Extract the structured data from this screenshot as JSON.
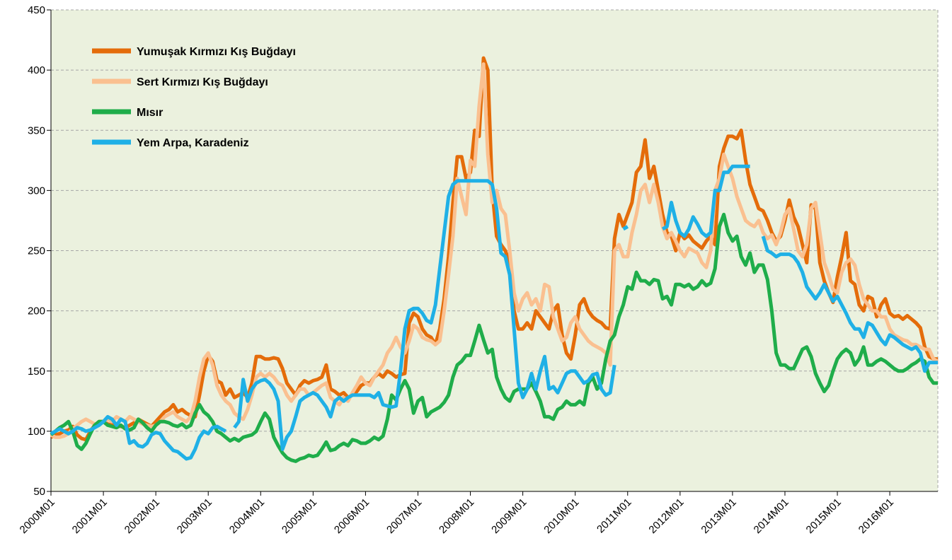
{
  "chart_data": {
    "type": "line",
    "categories": [
      "2000M01",
      null,
      null,
      null,
      null,
      null,
      null,
      null,
      null,
      null,
      null,
      null,
      "2001M01",
      null,
      null,
      null,
      null,
      null,
      null,
      null,
      null,
      null,
      null,
      null,
      "2002M01",
      null,
      null,
      null,
      null,
      null,
      null,
      null,
      null,
      null,
      null,
      null,
      "2003M01",
      null,
      null,
      null,
      null,
      null,
      null,
      null,
      null,
      null,
      null,
      null,
      "2004M01",
      null,
      null,
      null,
      null,
      null,
      null,
      null,
      null,
      null,
      null,
      null,
      "2005M01",
      null,
      null,
      null,
      null,
      null,
      null,
      null,
      null,
      null,
      null,
      null,
      "2006M01",
      null,
      null,
      null,
      null,
      null,
      null,
      null,
      null,
      null,
      null,
      null,
      "2007M01",
      null,
      null,
      null,
      null,
      null,
      null,
      null,
      null,
      null,
      null,
      null,
      "2008M01",
      null,
      null,
      null,
      null,
      null,
      null,
      null,
      null,
      null,
      null,
      null,
      "2009M01",
      null,
      null,
      null,
      null,
      null,
      null,
      null,
      null,
      null,
      null,
      null,
      "2010M01",
      null,
      null,
      null,
      null,
      null,
      null,
      null,
      null,
      null,
      null,
      null,
      "2011M01",
      null,
      null,
      null,
      null,
      null,
      null,
      null,
      null,
      null,
      null,
      null,
      "2012M01",
      null,
      null,
      null,
      null,
      null,
      null,
      null,
      null,
      null,
      null,
      null,
      "2013M01",
      null,
      null,
      null,
      null,
      null,
      null,
      null,
      null,
      null,
      null,
      null,
      "2014M01",
      null,
      null,
      null,
      null,
      null,
      null,
      null,
      null,
      null,
      null,
      null,
      "2015M01",
      null,
      null,
      null,
      null,
      null,
      null,
      null,
      null,
      null,
      null,
      null,
      "2016M01",
      null,
      null,
      null,
      null,
      null,
      null,
      null,
      null,
      null,
      null,
      null
    ],
    "series": [
      {
        "name": "Yumuşak Kırmızı Kış Buğdayı",
        "color": "#e46c0a",
        "values": [
          95,
          97,
          98,
          100,
          101,
          104,
          97,
          94,
          93,
          100,
          105,
          108,
          108,
          106,
          105,
          106,
          104,
          103,
          105,
          107,
          110,
          108,
          106,
          104,
          108,
          112,
          116,
          118,
          122,
          116,
          118,
          115,
          113,
          112,
          130,
          150,
          163,
          158,
          142,
          140,
          130,
          135,
          128,
          130,
          132,
          128,
          140,
          162,
          162,
          160,
          160,
          161,
          160,
          152,
          140,
          135,
          130,
          138,
          142,
          140,
          142,
          143,
          145,
          155,
          135,
          133,
          130,
          132,
          128,
          130,
          133,
          138,
          140,
          140,
          145,
          148,
          145,
          150,
          148,
          145,
          147,
          148,
          190,
          198,
          195,
          185,
          180,
          178,
          172,
          185,
          210,
          245,
          290,
          328,
          328,
          310,
          315,
          350,
          345,
          410,
          400,
          300,
          262,
          255,
          250,
          240,
          200,
          185,
          185,
          190,
          185,
          200,
          195,
          190,
          185,
          200,
          205,
          180,
          165,
          160,
          180,
          205,
          210,
          200,
          195,
          192,
          190,
          186,
          185,
          260,
          280,
          270,
          280,
          290,
          315,
          320,
          342,
          310,
          320,
          300,
          280,
          265,
          262,
          250,
          265,
          260,
          263,
          258,
          255,
          252,
          258,
          262,
          255,
          320,
          335,
          345,
          345,
          343,
          350,
          325,
          305,
          295,
          285,
          283,
          275,
          265,
          258,
          262,
          275,
          292,
          278,
          270,
          255,
          240,
          288,
          285,
          240,
          225,
          215,
          207,
          228,
          245,
          265,
          225,
          222,
          205,
          200,
          212,
          210,
          195,
          205,
          210,
          198,
          195,
          196,
          193,
          196,
          193,
          190,
          186,
          170,
          162,
          160,
          160
        ]
      },
      {
        "name": "Sert Kırmızı Kış Buğdayı",
        "color": "#fac090",
        "values": [
          97,
          95,
          95,
          96,
          98,
          102,
          105,
          108,
          110,
          108,
          106,
          105,
          108,
          110,
          108,
          112,
          110,
          108,
          112,
          110,
          108,
          106,
          105,
          104,
          105,
          108,
          112,
          114,
          116,
          112,
          110,
          108,
          112,
          125,
          145,
          160,
          165,
          155,
          138,
          130,
          125,
          122,
          115,
          112,
          110,
          118,
          130,
          145,
          148,
          145,
          148,
          145,
          140,
          138,
          130,
          125,
          130,
          135,
          135,
          130,
          132,
          135,
          138,
          140,
          128,
          125,
          122,
          128,
          125,
          132,
          138,
          145,
          140,
          138,
          145,
          150,
          155,
          165,
          170,
          178,
          170,
          165,
          175,
          188,
          185,
          178,
          176,
          175,
          172,
          175,
          200,
          230,
          262,
          310,
          295,
          280,
          325,
          320,
          370,
          405,
          330,
          290,
          300,
          285,
          280,
          250,
          215,
          200,
          210,
          215,
          205,
          210,
          200,
          222,
          220,
          195,
          185,
          175,
          178,
          190,
          195,
          185,
          180,
          175,
          172,
          170,
          168,
          165,
          155,
          250,
          255,
          245,
          245,
          265,
          280,
          300,
          305,
          290,
          305,
          290,
          270,
          260,
          265,
          258,
          250,
          245,
          252,
          250,
          248,
          240,
          236,
          250,
          300,
          310,
          330,
          320,
          310,
          295,
          285,
          275,
          272,
          270,
          275,
          265,
          260,
          263,
          255,
          265,
          280,
          285,
          268,
          250,
          245,
          255,
          285,
          290,
          265,
          240,
          230,
          218,
          215,
          232,
          240,
          243,
          238,
          222,
          210,
          205,
          200,
          200,
          195,
          195,
          185,
          180,
          178,
          176,
          175,
          172,
          172,
          170,
          168,
          168,
          160,
          158
        ]
      },
      {
        "name": "Mısır",
        "color": "#1fad4a",
        "values": [
          97,
          100,
          103,
          105,
          108,
          100,
          88,
          85,
          90,
          98,
          105,
          108,
          108,
          105,
          104,
          103,
          105,
          102,
          101,
          103,
          110,
          107,
          103,
          100,
          105,
          108,
          108,
          107,
          105,
          104,
          106,
          103,
          105,
          115,
          122,
          116,
          113,
          108,
          100,
          98,
          95,
          92,
          94,
          92,
          95,
          96,
          97,
          100,
          108,
          115,
          110,
          95,
          88,
          82,
          78,
          76,
          75,
          77,
          78,
          80,
          79,
          80,
          85,
          91,
          84,
          85,
          88,
          90,
          88,
          93,
          92,
          90,
          90,
          92,
          95,
          93,
          96,
          110,
          130,
          126,
          135,
          142,
          135,
          115,
          125,
          128,
          112,
          116,
          118,
          120,
          124,
          130,
          145,
          155,
          158,
          163,
          163,
          175,
          188,
          176,
          165,
          168,
          145,
          135,
          128,
          125,
          133,
          135,
          135,
          135,
          140,
          133,
          125,
          112,
          112,
          110,
          118,
          120,
          125,
          122,
          122,
          125,
          122,
          140,
          145,
          135,
          140,
          160,
          175,
          180,
          195,
          205,
          220,
          218,
          232,
          225,
          225,
          222,
          226,
          225,
          210,
          212,
          205,
          222,
          222,
          220,
          222,
          218,
          220,
          225,
          221,
          223,
          235,
          270,
          280,
          265,
          258,
          262,
          245,
          238,
          248,
          232,
          238,
          238,
          226,
          200,
          165,
          155,
          155,
          152,
          152,
          160,
          168,
          170,
          162,
          148,
          140,
          133,
          138,
          150,
          160,
          165,
          168,
          165,
          155,
          160,
          170,
          155,
          155,
          158,
          160,
          158,
          155,
          152,
          150,
          150,
          152,
          155,
          157,
          160,
          158,
          145,
          140,
          140
        ]
      },
      {
        "name": "Yem Arpa, Karadeniz",
        "color": "#1fb0e6",
        "values": [
          98,
          100,
          102,
          100,
          98,
          100,
          103,
          102,
          100,
          101,
          103,
          105,
          108,
          112,
          110,
          105,
          110,
          108,
          90,
          92,
          88,
          87,
          90,
          97,
          99,
          98,
          92,
          88,
          84,
          83,
          80,
          77,
          78,
          85,
          95,
          100,
          98,
          103,
          104,
          102,
          100,
          null,
          103,
          108,
          143,
          125,
          135,
          140,
          142,
          143,
          140,
          135,
          125,
          85,
          95,
          100,
          112,
          125,
          128,
          130,
          132,
          130,
          125,
          120,
          112,
          125,
          128,
          125,
          128,
          130,
          130,
          130,
          130,
          130,
          128,
          132,
          122,
          121,
          120,
          121,
          150,
          185,
          200,
          202,
          202,
          198,
          192,
          190,
          205,
          235,
          265,
          295,
          305,
          308,
          308,
          308,
          308,
          308,
          308,
          308,
          308,
          305,
          285,
          248,
          245,
          230,
          185,
          140,
          128,
          135,
          148,
          135,
          150,
          162,
          135,
          137,
          132,
          140,
          148,
          150,
          150,
          145,
          140,
          142,
          147,
          148,
          135,
          130,
          132,
          155,
          null,
          268,
          270,
          null,
          null,
          null,
          null,
          null,
          null,
          null,
          268,
          270,
          290,
          275,
          265,
          262,
          268,
          278,
          272,
          265,
          262,
          265,
          300,
          300,
          315,
          315,
          320,
          320,
          320,
          320,
          320,
          null,
          null,
          262,
          250,
          248,
          245,
          247,
          247,
          247,
          245,
          240,
          232,
          220,
          215,
          210,
          215,
          222,
          215,
          208,
          212,
          205,
          198,
          190,
          185,
          185,
          178,
          190,
          188,
          182,
          176,
          172,
          180,
          178,
          175,
          172,
          170,
          168,
          170,
          165,
          150,
          157,
          157,
          157
        ]
      }
    ],
    "ylim": [
      50,
      450
    ],
    "yticks": [
      50,
      100,
      150,
      200,
      250,
      300,
      350,
      400,
      450
    ],
    "grid": true,
    "legend": "upper left",
    "background": "#ebf1de"
  }
}
